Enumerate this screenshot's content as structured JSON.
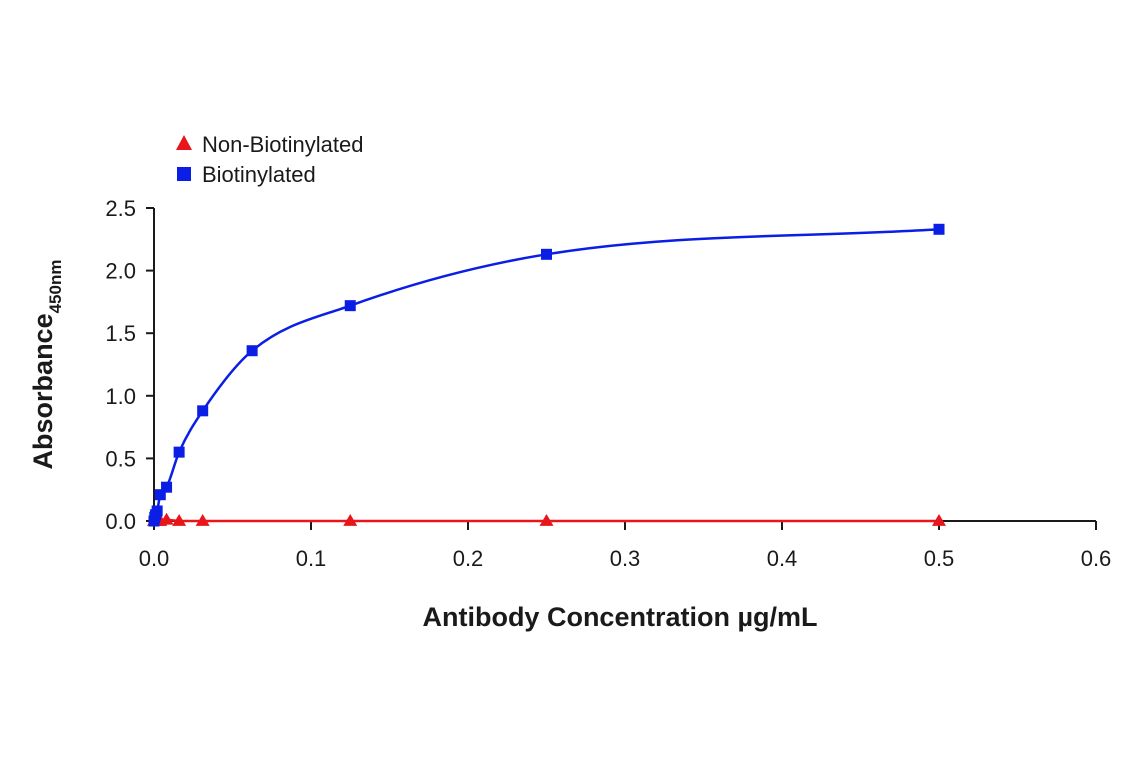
{
  "chart_data": {
    "type": "scatter",
    "title": "",
    "xlabel": "Antibody Concentration µg/mL",
    "ylabel": "Absorbance",
    "ylabel_subscript": "450nm",
    "xlim": [
      0,
      0.6
    ],
    "ylim": [
      0,
      2.5
    ],
    "xticks": [
      "0.0",
      "0.1",
      "0.2",
      "0.3",
      "0.4",
      "0.5",
      "0.6"
    ],
    "yticks": [
      "0.0",
      "0.5",
      "1.0",
      "1.5",
      "2.0",
      "2.5"
    ],
    "grid": false,
    "legend_position": "top-left",
    "series": [
      {
        "name": "Non-Biotinylated",
        "marker": "triangle",
        "color": "#e8161b",
        "x": [
          0,
          0.0005,
          0.001,
          0.002,
          0.004,
          0.008,
          0.016,
          0.031,
          0.125,
          0.25,
          0.5
        ],
        "y": [
          0.0,
          0.0,
          0.0,
          0.0,
          0.0,
          0.01,
          0.0,
          0.0,
          0.0,
          0.0,
          0.0
        ]
      },
      {
        "name": "Biotinylated",
        "marker": "square",
        "color": "#0a1ee6",
        "x": [
          0,
          0.0005,
          0.001,
          0.002,
          0.004,
          0.008,
          0.016,
          0.031,
          0.0625,
          0.125,
          0.25,
          0.5
        ],
        "y": [
          0.0,
          0.03,
          0.05,
          0.08,
          0.21,
          0.27,
          0.55,
          0.88,
          1.36,
          1.72,
          2.13,
          2.33
        ]
      }
    ]
  }
}
